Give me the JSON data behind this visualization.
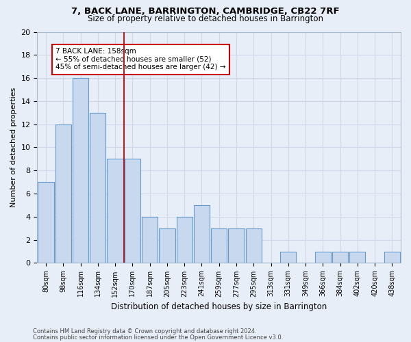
{
  "title1": "7, BACK LANE, BARRINGTON, CAMBRIDGE, CB22 7RF",
  "title2": "Size of property relative to detached houses in Barrington",
  "xlabel": "Distribution of detached houses by size in Barrington",
  "ylabel": "Number of detached properties",
  "bin_labels": [
    "80sqm",
    "98sqm",
    "116sqm",
    "134sqm",
    "152sqm",
    "170sqm",
    "187sqm",
    "205sqm",
    "223sqm",
    "241sqm",
    "259sqm",
    "277sqm",
    "295sqm",
    "313sqm",
    "331sqm",
    "349sqm",
    "366sqm",
    "384sqm",
    "402sqm",
    "420sqm",
    "438sqm"
  ],
  "bar_heights": [
    7,
    12,
    16,
    13,
    9,
    9,
    4,
    3,
    4,
    5,
    3,
    3,
    3,
    0,
    1,
    0,
    1,
    1,
    1,
    0,
    1
  ],
  "bar_color": "#c8d8ee",
  "bar_edge_color": "#6699cc",
  "grid_color": "#d0d8e8",
  "vline_x": 4.5,
  "vline_color": "#aa2222",
  "annotation_text": "7 BACK LANE: 158sqm\n← 55% of detached houses are smaller (52)\n45% of semi-detached houses are larger (42) →",
  "annotation_box_color": "#ffffff",
  "annotation_box_edge_color": "#cc0000",
  "ylim": [
    0,
    20
  ],
  "yticks": [
    0,
    2,
    4,
    6,
    8,
    10,
    12,
    14,
    16,
    18,
    20
  ],
  "footer1": "Contains HM Land Registry data © Crown copyright and database right 2024.",
  "footer2": "Contains public sector information licensed under the Open Government Licence v3.0.",
  "bg_color": "#e8eef8"
}
